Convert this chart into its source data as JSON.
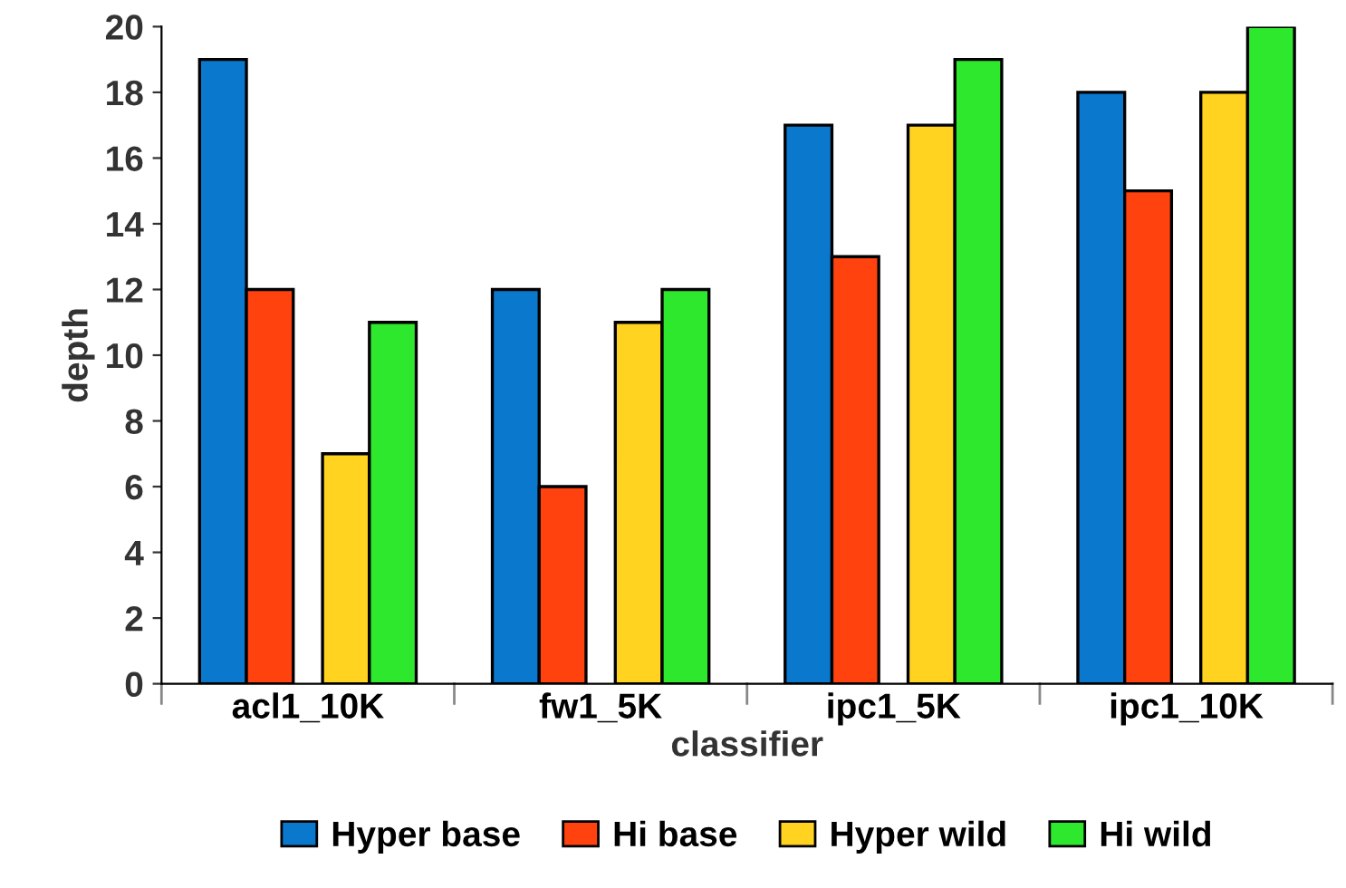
{
  "chart_data": {
    "type": "bar",
    "xlabel": "classifier",
    "ylabel": "depth",
    "categories": [
      "acl1_10K",
      "fw1_5K",
      "ipc1_5K",
      "ipc1_10K"
    ],
    "series": [
      {
        "name": "Hyper base",
        "color": "#0a78cc",
        "values": [
          19,
          12,
          17,
          18
        ]
      },
      {
        "name": "Hi base",
        "color": "#ff420e",
        "values": [
          12,
          6,
          13,
          15
        ]
      },
      {
        "name": "Hyper wild",
        "color": "#ffd320",
        "values": [
          7,
          11,
          17,
          18
        ]
      },
      {
        "name": "Hi wild",
        "color": "#2de82d",
        "values": [
          11,
          12,
          19,
          20
        ]
      }
    ],
    "ylim": [
      0,
      20
    ],
    "yticks": [
      0,
      2,
      4,
      6,
      8,
      10,
      12,
      14,
      16,
      18,
      20
    ],
    "grid": false,
    "legend": "bottom"
  }
}
